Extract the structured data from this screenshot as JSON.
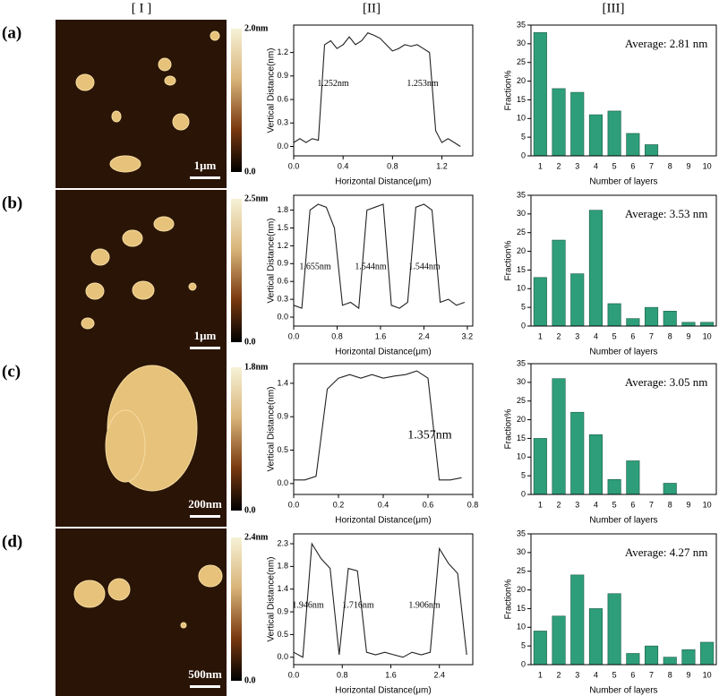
{
  "columns": [
    "[ I ]",
    "[II]",
    "[III]"
  ],
  "rows": [
    {
      "label": "(a)",
      "afm": {
        "max": "2.0nm",
        "min": "0.0",
        "scale": "1μm"
      }
    },
    {
      "label": "(b)",
      "afm": {
        "max": "2.5nm",
        "min": "0.0",
        "scale": "1μm"
      }
    },
    {
      "label": "(c)",
      "afm": {
        "max": "1.8nm",
        "min": "0.0",
        "scale": "200nm"
      }
    },
    {
      "label": "(d)",
      "afm": {
        "max": "2.4nm",
        "min": "0.0",
        "scale": "500nm"
      }
    }
  ],
  "chart_data": [
    {
      "type": "line",
      "x_label": "Horizontal Distance(μm)",
      "y_label": "Vertical Distance(nm)",
      "x": [
        0,
        0.05,
        0.1,
        0.15,
        0.2,
        0.25,
        0.3,
        0.35,
        0.4,
        0.45,
        0.5,
        0.55,
        0.6,
        0.65,
        0.7,
        0.75,
        0.8,
        0.85,
        0.9,
        0.95,
        1.0,
        1.05,
        1.1,
        1.15,
        1.2,
        1.25,
        1.3,
        1.35
      ],
      "series": [
        {
          "color": "#222222",
          "values": [
            0.05,
            0.1,
            0.05,
            0.1,
            0.08,
            1.3,
            1.35,
            1.25,
            1.3,
            1.4,
            1.3,
            1.35,
            1.45,
            1.42,
            1.38,
            1.3,
            1.22,
            1.25,
            1.3,
            1.28,
            1.3,
            1.25,
            1.2,
            0.2,
            0.05,
            0.1,
            0.05,
            0.0
          ]
        }
      ],
      "xlim": [
        0,
        1.45
      ],
      "xticks": [
        {
          "value": 0,
          "label": "0.0"
        },
        0.4,
        0.8,
        1.2
      ],
      "ylim": [
        -0.12,
        1.55
      ],
      "yticks": [
        {
          "value": 0,
          "label": "0.0"
        },
        0.3,
        0.6,
        0.9,
        1.2
      ],
      "annotations": [
        "1.252nm",
        "1.253nm"
      ]
    },
    {
      "type": "bar",
      "x_label": "Number of layers",
      "y_label": "Fraction%",
      "color": "#2e9e7a",
      "categories": [
        "1",
        "2",
        "3",
        "4",
        "5",
        "6",
        "7",
        "8",
        "9",
        "10"
      ],
      "values": [
        33,
        18,
        17,
        11,
        12,
        6,
        3,
        0,
        0,
        0
      ],
      "ylim": [
        0,
        35
      ],
      "yticks": [
        0,
        5,
        10,
        15,
        20,
        25,
        30,
        35
      ],
      "annotations": [
        "Average: 2.81 nm"
      ]
    },
    {
      "type": "line",
      "x_label": "Horizontal Distance(μm)",
      "y_label": "Vertical Distance(nm)",
      "x": [
        0,
        0.15,
        0.3,
        0.45,
        0.6,
        0.75,
        0.9,
        1.05,
        1.2,
        1.35,
        1.5,
        1.65,
        1.8,
        1.95,
        2.1,
        2.25,
        2.4,
        2.55,
        2.7,
        2.85,
        3.0,
        3.15
      ],
      "series": [
        {
          "color": "#222222",
          "values": [
            0.2,
            0.15,
            1.8,
            1.9,
            1.85,
            1.5,
            0.2,
            0.25,
            0.15,
            1.8,
            1.85,
            1.9,
            0.2,
            0.15,
            0.25,
            1.85,
            1.9,
            1.8,
            0.25,
            0.3,
            0.2,
            0.25
          ]
        }
      ],
      "xlim": [
        0,
        3.3
      ],
      "xticks": [
        {
          "value": 0,
          "label": "0.0"
        },
        0.8,
        1.6,
        2.4,
        3.2
      ],
      "ylim": [
        -0.15,
        2.05
      ],
      "yticks": [
        {
          "value": 0,
          "label": "0.0"
        },
        0.3,
        0.6,
        0.9,
        1.2,
        1.5,
        1.8
      ],
      "annotations": [
        "1.655nm",
        "1.544nm",
        "1.544nm"
      ]
    },
    {
      "type": "bar",
      "x_label": "Number of layers",
      "y_label": "Fraction%",
      "color": "#2e9e7a",
      "categories": [
        "1",
        "2",
        "3",
        "4",
        "5",
        "6",
        "7",
        "8",
        "9",
        "10"
      ],
      "values": [
        13,
        23,
        14,
        31,
        6,
        2,
        5,
        4,
        1,
        1
      ],
      "ylim": [
        0,
        35
      ],
      "yticks": [
        0,
        5,
        10,
        15,
        20,
        25,
        30,
        35
      ],
      "annotations": [
        "Average: 3.53 nm"
      ]
    },
    {
      "type": "line",
      "x_label": "Horizontal Distance(μm)",
      "y_label": "Vertical Distance(nm)",
      "x": [
        0,
        0.05,
        0.1,
        0.15,
        0.2,
        0.25,
        0.3,
        0.35,
        0.4,
        0.45,
        0.5,
        0.55,
        0.6,
        0.65,
        0.7,
        0.75
      ],
      "series": [
        {
          "color": "#222222",
          "values": [
            0.05,
            0.05,
            0.1,
            1.3,
            1.45,
            1.5,
            1.45,
            1.5,
            1.45,
            1.48,
            1.5,
            1.55,
            1.45,
            0.05,
            0.05,
            0.08
          ]
        }
      ],
      "xlim": [
        0,
        0.8
      ],
      "xticks": [
        {
          "value": 0,
          "label": "0.0"
        },
        0.2,
        0.4,
        0.6,
        0.8
      ],
      "ylim": [
        -0.15,
        1.65
      ],
      "yticks": [
        {
          "value": 0,
          "label": "0.0"
        },
        {
          "value": 0.46,
          "label": "0.5"
        },
        {
          "value": 0.92,
          "label": "0.9"
        },
        {
          "value": 1.38,
          "label": "1.4"
        }
      ],
      "annotations": [
        "1.357nm"
      ]
    },
    {
      "type": "bar",
      "x_label": "Number of layers",
      "y_label": "Fraction%",
      "color": "#2e9e7a",
      "categories": [
        "1",
        "2",
        "3",
        "4",
        "5",
        "6",
        "7",
        "8",
        "9",
        "10"
      ],
      "values": [
        15,
        31,
        22,
        16,
        4,
        9,
        0,
        3,
        0,
        0
      ],
      "ylim": [
        0,
        35
      ],
      "yticks": [
        0,
        5,
        10,
        15,
        20,
        25,
        30,
        35
      ],
      "annotations": [
        "Average: 3.05 nm"
      ]
    },
    {
      "type": "line",
      "x_label": "Horizontal Distance(μm)",
      "y_label": "Vertical Distance(nm)",
      "x": [
        0,
        0.15,
        0.3,
        0.45,
        0.6,
        0.75,
        0.9,
        1.05,
        1.2,
        1.35,
        1.5,
        1.65,
        1.8,
        1.95,
        2.1,
        2.25,
        2.4,
        2.55,
        2.7,
        2.85
      ],
      "series": [
        {
          "color": "#222222",
          "values": [
            0.1,
            0.0,
            2.3,
            2.0,
            1.8,
            0.05,
            1.8,
            1.75,
            0.1,
            0.05,
            0.1,
            0.05,
            0.0,
            0.1,
            0.05,
            0.1,
            2.2,
            1.9,
            1.7,
            0.05
          ]
        }
      ],
      "xlim": [
        0,
        2.95
      ],
      "xticks": [
        {
          "value": 0,
          "label": "0.0"
        },
        0.8,
        1.6,
        2.4
      ],
      "ylim": [
        -0.15,
        2.5
      ],
      "yticks": [
        {
          "value": 0,
          "label": "0.0"
        },
        {
          "value": 0.46,
          "label": "0.5"
        },
        {
          "value": 0.92,
          "label": "0.9"
        },
        {
          "value": 1.38,
          "label": "1.4"
        },
        {
          "value": 1.84,
          "label": "1.8"
        },
        {
          "value": 2.3,
          "label": "2.3"
        }
      ],
      "annotations": [
        "1.946nm",
        "1.716nm",
        "1.906nm"
      ]
    },
    {
      "type": "bar",
      "x_label": "Number of layers",
      "y_label": "Fraction%",
      "color": "#2e9e7a",
      "categories": [
        "1",
        "2",
        "3",
        "4",
        "5",
        "6",
        "7",
        "8",
        "9",
        "10"
      ],
      "values": [
        9,
        13,
        24,
        15,
        19,
        3,
        5,
        2,
        4,
        6
      ],
      "ylim": [
        0,
        35
      ],
      "yticks": [
        0,
        5,
        10,
        15,
        20,
        25,
        30,
        35
      ],
      "annotations": [
        "Average: 4.27 nm"
      ]
    }
  ]
}
